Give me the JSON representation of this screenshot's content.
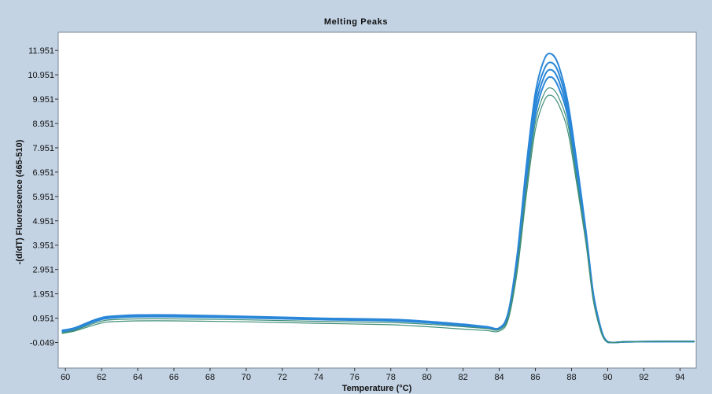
{
  "chart_data": {
    "type": "line",
    "title": "Melting Peaks",
    "xlabel": "Temperature (°C)",
    "ylabel": "-(d/dT) Fluorescence (465-510)",
    "xlim": [
      59.6,
      94.9
    ],
    "ylim": [
      -1.1,
      12.7
    ],
    "x_ticks": [
      60,
      62,
      64,
      66,
      68,
      70,
      72,
      74,
      76,
      78,
      80,
      82,
      84,
      86,
      88,
      90,
      92,
      94
    ],
    "y_ticks": [
      -0.049,
      0.951,
      1.951,
      2.951,
      3.951,
      4.951,
      5.951,
      6.951,
      7.951,
      8.951,
      9.951,
      10.951,
      11.951
    ],
    "y_tick_labels": [
      "-0.049",
      "0.951",
      "1.951",
      "2.951",
      "3.951",
      "4.951",
      "5.951",
      "6.951",
      "7.951",
      "8.951",
      "9.951",
      "10.951",
      "11.951"
    ],
    "grid": false,
    "legend": "none",
    "colors": {
      "primary_series": "#2a87d8",
      "low_series": "#3f8e78",
      "background": "#c3d3e4",
      "plot_area": "#ffffff"
    },
    "series": [
      {
        "x": [
          59.8,
          60.5,
          61.5,
          62.2,
          63,
          64,
          66,
          70,
          74,
          78,
          80,
          82,
          83.3,
          84,
          84.5,
          85,
          85.5,
          86,
          86.5,
          86.9,
          87.3,
          87.8,
          88.3,
          88.8,
          89.2,
          89.6,
          89.9,
          90.3,
          91,
          93,
          94.8
        ],
        "y": [
          0.45,
          0.55,
          0.85,
          1.0,
          1.05,
          1.08,
          1.08,
          1.02,
          0.95,
          0.9,
          0.82,
          0.7,
          0.6,
          0.55,
          1.2,
          3.6,
          7.2,
          10.2,
          11.6,
          11.8,
          11.3,
          9.8,
          7.3,
          4.5,
          2.0,
          0.6,
          0.05,
          -0.05,
          -0.02,
          -0.01,
          -0.01
        ]
      },
      {
        "x": [
          59.8,
          60.5,
          61.5,
          62.2,
          63,
          64,
          66,
          70,
          74,
          78,
          80,
          82,
          83.3,
          84,
          84.5,
          85,
          85.5,
          86,
          86.5,
          86.9,
          87.3,
          87.8,
          88.3,
          88.8,
          89.2,
          89.6,
          89.9,
          90.3,
          91,
          93,
          94.8
        ],
        "y": [
          0.42,
          0.52,
          0.82,
          0.98,
          1.03,
          1.06,
          1.06,
          1.0,
          0.93,
          0.88,
          0.8,
          0.68,
          0.58,
          0.53,
          1.15,
          3.5,
          7.0,
          9.9,
          11.2,
          11.45,
          11.0,
          9.6,
          7.1,
          4.4,
          1.9,
          0.55,
          0.03,
          -0.05,
          -0.02,
          -0.01,
          -0.01
        ]
      },
      {
        "x": [
          59.8,
          60.5,
          61.5,
          62.2,
          63,
          64,
          66,
          70,
          74,
          78,
          80,
          82,
          83.3,
          84,
          84.5,
          85,
          85.5,
          86,
          86.5,
          86.9,
          87.3,
          87.8,
          88.3,
          88.8,
          89.2,
          89.6,
          89.9,
          90.3,
          91,
          93,
          94.8
        ],
        "y": [
          0.4,
          0.5,
          0.8,
          0.95,
          1.0,
          1.03,
          1.03,
          0.98,
          0.91,
          0.86,
          0.78,
          0.66,
          0.57,
          0.52,
          1.1,
          3.4,
          6.8,
          9.6,
          10.9,
          11.15,
          10.7,
          9.4,
          6.9,
          4.3,
          1.85,
          0.52,
          0.02,
          -0.05,
          -0.02,
          -0.01,
          -0.01
        ]
      },
      {
        "x": [
          59.8,
          60.5,
          61.5,
          62.2,
          63,
          64,
          66,
          70,
          74,
          78,
          80,
          82,
          83.3,
          84,
          84.5,
          85,
          85.5,
          86,
          86.5,
          86.9,
          87.3,
          87.8,
          88.3,
          88.8,
          89.2,
          89.6,
          89.9,
          90.3,
          91,
          93,
          94.8
        ],
        "y": [
          0.38,
          0.48,
          0.78,
          0.93,
          0.98,
          1.01,
          1.01,
          0.96,
          0.89,
          0.84,
          0.76,
          0.64,
          0.55,
          0.5,
          1.05,
          3.3,
          6.6,
          9.3,
          10.6,
          10.85,
          10.4,
          9.2,
          6.8,
          4.2,
          1.8,
          0.5,
          0.02,
          -0.05,
          -0.02,
          -0.01,
          -0.01
        ]
      },
      {
        "x": [
          59.8,
          60.5,
          61.5,
          62.2,
          63,
          64,
          66,
          70,
          74,
          78,
          80,
          82,
          83.3,
          84,
          84.5,
          85,
          85.5,
          86,
          86.5,
          86.9,
          87.3,
          87.8,
          88.3,
          88.8,
          89.2,
          89.6,
          89.9,
          90.3,
          91,
          93,
          94.8
        ],
        "y": [
          0.35,
          0.45,
          0.72,
          0.86,
          0.9,
          0.92,
          0.92,
          0.88,
          0.82,
          0.77,
          0.7,
          0.6,
          0.52,
          0.48,
          1.0,
          3.1,
          6.3,
          9.0,
          10.2,
          10.4,
          10.0,
          8.9,
          6.6,
          4.1,
          1.75,
          0.48,
          0.02,
          -0.05,
          -0.02,
          -0.01,
          -0.01
        ]
      },
      {
        "x": [
          59.8,
          60.5,
          61.5,
          62.2,
          63,
          64,
          66,
          70,
          74,
          78,
          80,
          82,
          83.3,
          84,
          84.5,
          85,
          85.5,
          86,
          86.5,
          86.9,
          87.3,
          87.8,
          88.3,
          88.8,
          89.2,
          89.6,
          89.9,
          90.3,
          91,
          93,
          94.8
        ],
        "y": [
          0.32,
          0.42,
          0.65,
          0.78,
          0.82,
          0.84,
          0.84,
          0.8,
          0.74,
          0.68,
          0.6,
          0.5,
          0.44,
          0.42,
          0.9,
          2.9,
          6.0,
          8.7,
          9.9,
          10.1,
          9.7,
          8.6,
          6.4,
          4.0,
          1.7,
          0.45,
          0.02,
          -0.05,
          -0.02,
          -0.01,
          -0.01
        ]
      }
    ]
  }
}
